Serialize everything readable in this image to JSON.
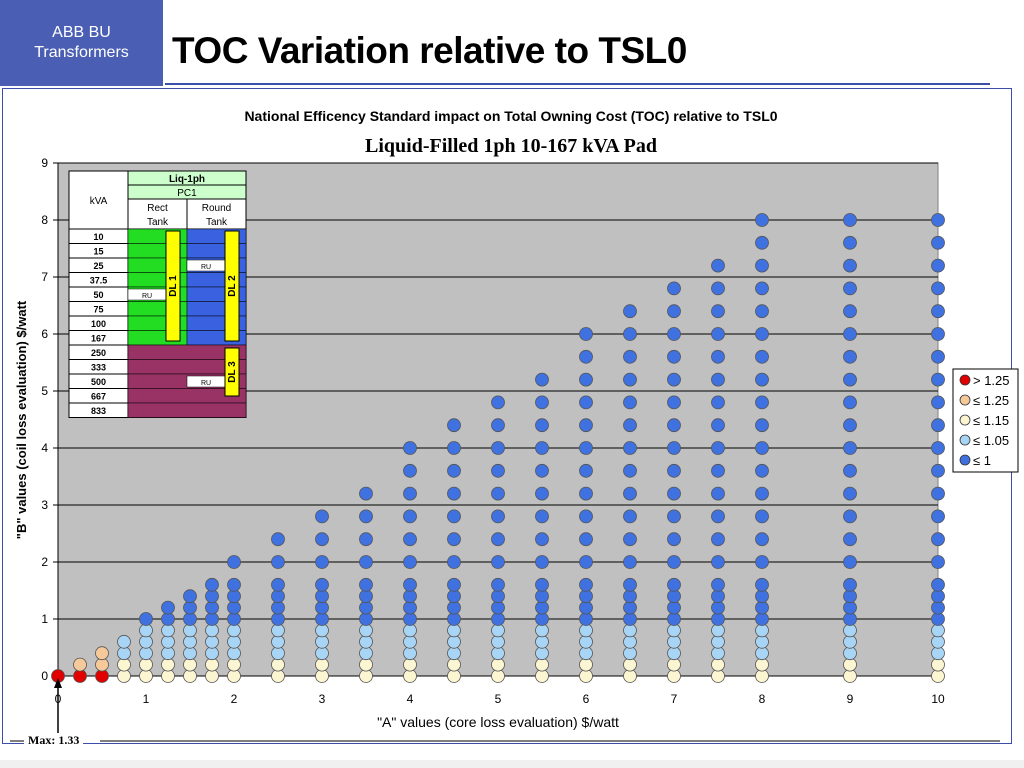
{
  "header": {
    "brand_line1": "ABB BU",
    "brand_line2": "Transformers",
    "title": "TOC Variation relative to TSL0"
  },
  "footer": {
    "max_note": "Max: 1.33"
  },
  "chart_data": {
    "type": "scatter",
    "title": "National Efficency Standard impact on Total Owning Cost (TOC) relative to TSL0",
    "subtitle": "Liquid-Filled 1ph 10-167 kVA Pad",
    "xlabel": "\"A\" values (core loss evaluation) $/watt",
    "ylabel": "\"B\" values (coil loss evaluation) $/watt",
    "xlim": [
      0,
      10
    ],
    "ylim": [
      0,
      9
    ],
    "xticks": [
      "0",
      "1",
      "2",
      "3",
      "4",
      "5",
      "6",
      "7",
      "8",
      "9",
      "10"
    ],
    "yticks": [
      "0",
      "1",
      "2",
      "3",
      "4",
      "5",
      "6",
      "7",
      "8",
      "9"
    ],
    "grid": "horizontal",
    "plot_bg": "#c0c0c0",
    "legend_position": "right",
    "categories": [
      {
        "label": "> 1.25",
        "color": "#e00000"
      },
      {
        "label": "≤ 1.25",
        "color": "#f5c99a"
      },
      {
        "label": "≤ 1.15",
        "color": "#fbf5d2"
      },
      {
        "label": "≤ 1.05",
        "color": "#a8d4f5"
      },
      {
        "label": "≤ 1",
        "color": "#3f72e0"
      }
    ],
    "columns": [
      {
        "x": 0.0,
        "ymax": 0.0
      },
      {
        "x": 0.25,
        "ymax": 0.2
      },
      {
        "x": 0.5,
        "ymax": 0.4
      },
      {
        "x": 0.75,
        "ymax": 0.6
      },
      {
        "x": 1.0,
        "ymax": 1.0
      },
      {
        "x": 1.25,
        "ymax": 1.2
      },
      {
        "x": 1.5,
        "ymax": 1.4
      },
      {
        "x": 1.75,
        "ymax": 1.6
      },
      {
        "x": 2.0,
        "ymax": 2.0
      },
      {
        "x": 2.5,
        "ymax": 2.4
      },
      {
        "x": 3.0,
        "ymax": 2.8
      },
      {
        "x": 3.5,
        "ymax": 3.2
      },
      {
        "x": 4.0,
        "ymax": 4.0
      },
      {
        "x": 4.5,
        "ymax": 4.4
      },
      {
        "x": 5.0,
        "ymax": 4.8
      },
      {
        "x": 5.5,
        "ymax": 5.2
      },
      {
        "x": 6.0,
        "ymax": 6.0
      },
      {
        "x": 6.5,
        "ymax": 6.4
      },
      {
        "x": 7.0,
        "ymax": 6.8
      },
      {
        "x": 7.5,
        "ymax": 7.2
      },
      {
        "x": 8.0,
        "ymax": 8.0
      },
      {
        "x": 9.0,
        "ymax": 8.0
      },
      {
        "x": 10.0,
        "ymax": 8.0
      }
    ],
    "y_levels": [
      0,
      0.2,
      0.4,
      0.6,
      0.8,
      1.0,
      1.2,
      1.4,
      1.6,
      2.0,
      2.4,
      2.8,
      3.2,
      3.6,
      4.0,
      4.4,
      4.8,
      5.2,
      5.6,
      6.0,
      6.4,
      6.8,
      7.2,
      7.6,
      8.0
    ],
    "inset_table": {
      "header_top": "Liq-1ph",
      "header_sub": "PC1",
      "kva_label": "kVA",
      "col1": "Rect Tank",
      "col1_l1": "Rect",
      "col1_l2": "Tank",
      "col2_l1": "Round",
      "col2_l2": "Tank",
      "rows": [
        "10",
        "15",
        "25",
        "37.5",
        "50",
        "75",
        "100",
        "167",
        "250",
        "333",
        "500",
        "667",
        "833"
      ],
      "ru_label": "RU",
      "dl1": "DL 1",
      "dl2": "DL 2",
      "dl3": "DL 3",
      "colors": {
        "green": "#22dd22",
        "blue": "#3a62e0",
        "maroon": "#993366",
        "header": "#ccffcc",
        "dl": "#ffff00"
      }
    }
  }
}
